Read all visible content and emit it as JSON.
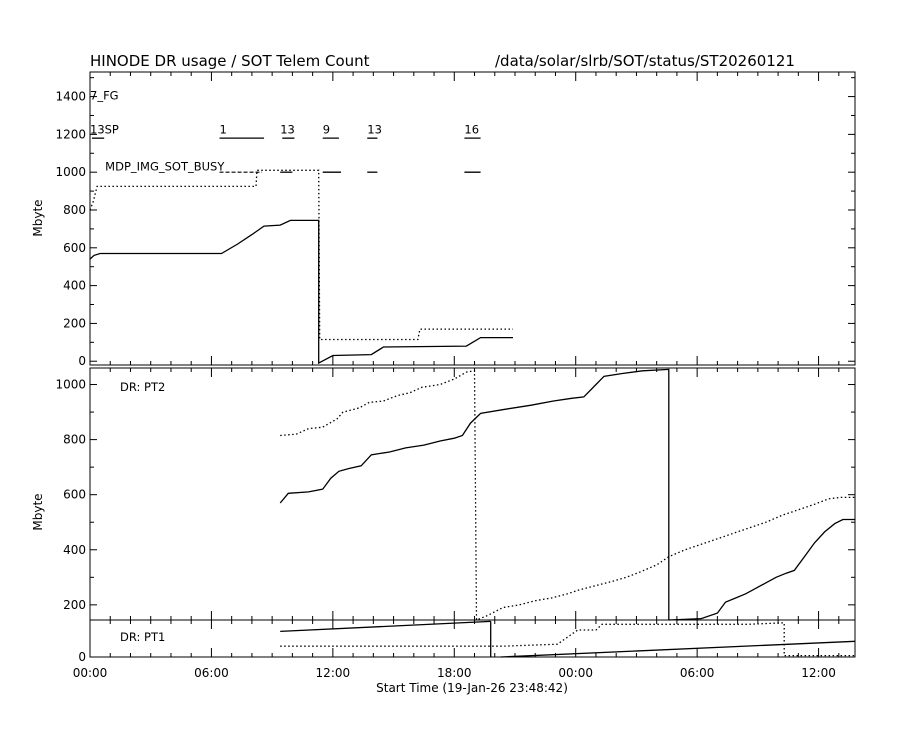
{
  "header": {
    "title": "HINODE DR usage / SOT Telem Count",
    "path": "/data/solar/slrb/SOT/status/ST20260121"
  },
  "xaxis": {
    "label": "Start Time (19-Jan-26 23:48:42)",
    "ticks": [
      "00:00",
      "06:00",
      "12:00",
      "18:00",
      "00:00",
      "06:00",
      "12:00"
    ],
    "tick_hours": [
      0,
      6,
      12,
      18,
      24,
      30,
      36
    ],
    "range_hours": [
      0,
      37.8
    ]
  },
  "chart_data": [
    {
      "type": "line",
      "ylabel": "Mbyte",
      "ylim": [
        -20,
        1530
      ],
      "yticks": [
        0,
        200,
        400,
        600,
        800,
        1000,
        1200,
        1400
      ],
      "annotations": [
        {
          "text": "7_FG",
          "x": 0,
          "y": 1385
        },
        {
          "text": "13SP",
          "x": 0,
          "y": 1205
        },
        {
          "text": "1",
          "x": 6.4,
          "y": 1205
        },
        {
          "text": "13",
          "x": 9.4,
          "y": 1205
        },
        {
          "text": "9",
          "x": 11.5,
          "y": 1205
        },
        {
          "text": "13",
          "x": 13.7,
          "y": 1205
        },
        {
          "text": "16",
          "x": 18.5,
          "y": 1205
        },
        {
          "text": "MDP_IMG_SOT_BUSY",
          "x": 0.75,
          "y": 1010
        }
      ],
      "busy_bars": [
        {
          "x": [
            0.1,
            0.7
          ],
          "y": 1180
        },
        {
          "x": [
            6.4,
            8.6
          ],
          "y": 1180
        },
        {
          "x": [
            9.5,
            10.1
          ],
          "y": 1180
        },
        {
          "x": [
            11.5,
            12.3
          ],
          "y": 1180
        },
        {
          "x": [
            13.7,
            14.2
          ],
          "y": 1180
        },
        {
          "x": [
            18.5,
            19.3
          ],
          "y": 1180
        },
        {
          "x": [
            9.4,
            10.0
          ],
          "y": 1000
        },
        {
          "x": [
            11.5,
            12.4
          ],
          "y": 1000
        },
        {
          "x": [
            13.7,
            14.2
          ],
          "y": 1000
        },
        {
          "x": [
            18.5,
            19.3
          ],
          "y": 1000
        }
      ],
      "busy_dashed": [
        {
          "x": [
            6.4,
            8.5
          ],
          "y": 1000
        }
      ],
      "series": [
        {
          "style": "solid",
          "points": [
            [
              0,
              540
            ],
            [
              0.2,
              560
            ],
            [
              0.5,
              570
            ],
            [
              6.5,
              570
            ],
            [
              7.3,
              620
            ],
            [
              8.0,
              670
            ],
            [
              8.6,
              715
            ],
            [
              9.4,
              720
            ],
            [
              9.9,
              745
            ],
            [
              11.3,
              745
            ],
            [
              11.3,
              -10
            ],
            [
              12.0,
              30
            ],
            [
              13.9,
              35
            ],
            [
              14.5,
              75
            ],
            [
              18.6,
              80
            ],
            [
              19.3,
              125
            ],
            [
              20.9,
              125
            ]
          ]
        },
        {
          "style": "dotted",
          "points": [
            [
              0,
              800
            ],
            [
              0.15,
              840
            ],
            [
              0.35,
              925
            ],
            [
              8.2,
              925
            ],
            [
              8.25,
              1010
            ],
            [
              11.3,
              1010
            ],
            [
              11.35,
              115
            ],
            [
              16.2,
              115
            ],
            [
              16.3,
              170
            ],
            [
              20.9,
              170
            ]
          ]
        }
      ]
    },
    {
      "type": "line",
      "label": "DR: PT2",
      "ylabel": "Mbyte",
      "ylim": [
        145,
        1060
      ],
      "yticks": [
        200,
        400,
        600,
        800,
        1000
      ],
      "series": [
        {
          "style": "solid",
          "points": [
            [
              9.4,
              570
            ],
            [
              9.8,
              605
            ],
            [
              10.8,
              610
            ],
            [
              11.5,
              620
            ],
            [
              11.9,
              660
            ],
            [
              12.3,
              685
            ],
            [
              12.8,
              695
            ],
            [
              13.4,
              705
            ],
            [
              13.9,
              745
            ],
            [
              14.8,
              755
            ],
            [
              15.6,
              770
            ],
            [
              16.5,
              780
            ],
            [
              17.3,
              795
            ],
            [
              18.0,
              805
            ],
            [
              18.4,
              815
            ],
            [
              18.8,
              860
            ],
            [
              19.3,
              895
            ],
            [
              20.5,
              910
            ],
            [
              21.8,
              925
            ],
            [
              22.9,
              940
            ],
            [
              23.8,
              950
            ],
            [
              24.4,
              955
            ],
            [
              25.0,
              1000
            ],
            [
              25.4,
              1030
            ],
            [
              26.3,
              1040
            ],
            [
              27.3,
              1050
            ],
            [
              28.6,
              1055
            ],
            [
              28.6,
              145
            ]
          ]
        },
        {
          "style": "dotted",
          "points": [
            [
              9.4,
              815
            ],
            [
              10.2,
              820
            ],
            [
              10.8,
              840
            ],
            [
              11.5,
              845
            ],
            [
              12.2,
              875
            ],
            [
              12.5,
              900
            ],
            [
              13.3,
              915
            ],
            [
              13.8,
              935
            ],
            [
              14.5,
              940
            ],
            [
              15.2,
              960
            ],
            [
              15.8,
              970
            ],
            [
              16.4,
              990
            ],
            [
              17.3,
              1000
            ],
            [
              18.0,
              1020
            ],
            [
              18.6,
              1045
            ],
            [
              19.0,
              1050
            ],
            [
              19.1,
              145
            ],
            [
              19.6,
              160
            ],
            [
              20.4,
              190
            ],
            [
              21.2,
              200
            ],
            [
              22.0,
              215
            ],
            [
              22.8,
              225
            ],
            [
              23.6,
              240
            ],
            [
              24.2,
              255
            ],
            [
              25.0,
              270
            ],
            [
              25.8,
              285
            ],
            [
              26.5,
              300
            ],
            [
              27.2,
              320
            ],
            [
              28.0,
              345
            ],
            [
              28.6,
              375
            ],
            [
              29.4,
              400
            ],
            [
              30.2,
              420
            ],
            [
              31.0,
              440
            ],
            [
              31.8,
              460
            ],
            [
              32.6,
              480
            ],
            [
              33.4,
              500
            ],
            [
              34.2,
              525
            ],
            [
              35.0,
              545
            ],
            [
              35.8,
              565
            ],
            [
              36.5,
              585
            ],
            [
              37.1,
              590
            ],
            [
              37.8,
              590
            ]
          ]
        },
        {
          "style": "solid",
          "points": [
            [
              28.6,
              145
            ],
            [
              30.2,
              150
            ],
            [
              31.0,
              170
            ],
            [
              31.4,
              210
            ],
            [
              31.9,
              225
            ],
            [
              32.4,
              240
            ],
            [
              32.9,
              260
            ],
            [
              33.4,
              280
            ],
            [
              33.9,
              300
            ],
            [
              34.4,
              315
            ],
            [
              34.8,
              325
            ],
            [
              35.3,
              375
            ],
            [
              35.8,
              425
            ],
            [
              36.3,
              465
            ],
            [
              36.8,
              495
            ],
            [
              37.2,
              510
            ],
            [
              37.8,
              510
            ]
          ]
        }
      ]
    },
    {
      "type": "line",
      "label": "DR: PT1",
      "ylim": [
        0,
        130
      ],
      "yticks": [
        0
      ],
      "series": [
        {
          "style": "solid",
          "points": [
            [
              9.4,
              90
            ],
            [
              19.8,
              125
            ]
          ]
        },
        {
          "style": "solid",
          "points": [
            [
              19.8,
              125
            ],
            [
              19.8,
              0
            ]
          ]
        },
        {
          "style": "dotted",
          "points": [
            [
              9.4,
              38
            ],
            [
              20.4,
              38
            ],
            [
              23.1,
              45
            ],
            [
              24.1,
              95
            ],
            [
              25.0,
              95
            ],
            [
              25.3,
              115
            ],
            [
              32.5,
              115
            ],
            [
              34.3,
              120
            ],
            [
              34.3,
              5
            ],
            [
              37.8,
              5
            ]
          ]
        },
        {
          "style": "solid",
          "points": [
            [
              20.3,
              0
            ],
            [
              37.8,
              55
            ]
          ]
        }
      ]
    }
  ]
}
